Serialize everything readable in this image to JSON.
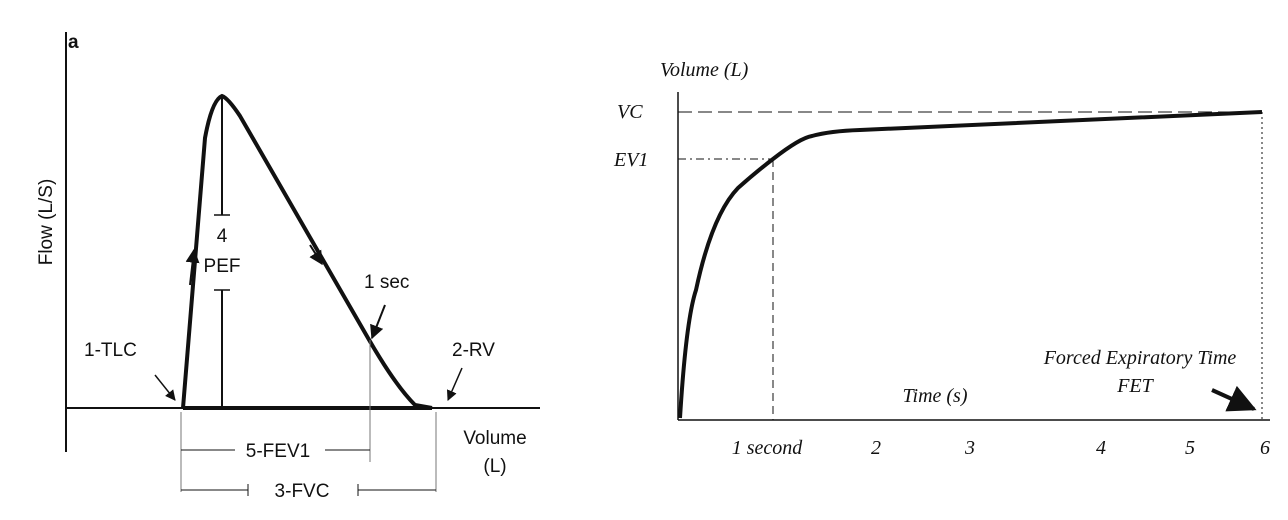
{
  "panel_a": {
    "label": "a",
    "y_axis_label": "Flow (L/S)",
    "x_axis_label": [
      "Volume",
      "(L)"
    ],
    "annotations": {
      "tlc": "1-TLC",
      "rv": "2-RV",
      "pef": [
        "4",
        "PEF"
      ],
      "one_sec": "1 sec",
      "fev1": "5-FEV1",
      "fvc": "3-FVC"
    }
  },
  "panel_b": {
    "y_axis_label": "Volume (L)",
    "x_axis_label": "Time (s)",
    "y_labels": [
      "VC",
      "EV1"
    ],
    "x_labels": [
      "1 second",
      "2",
      "3",
      "4",
      "5",
      "6"
    ],
    "annotations": {
      "fet": [
        "Forced Expiratory Time",
        "FET"
      ]
    }
  }
}
